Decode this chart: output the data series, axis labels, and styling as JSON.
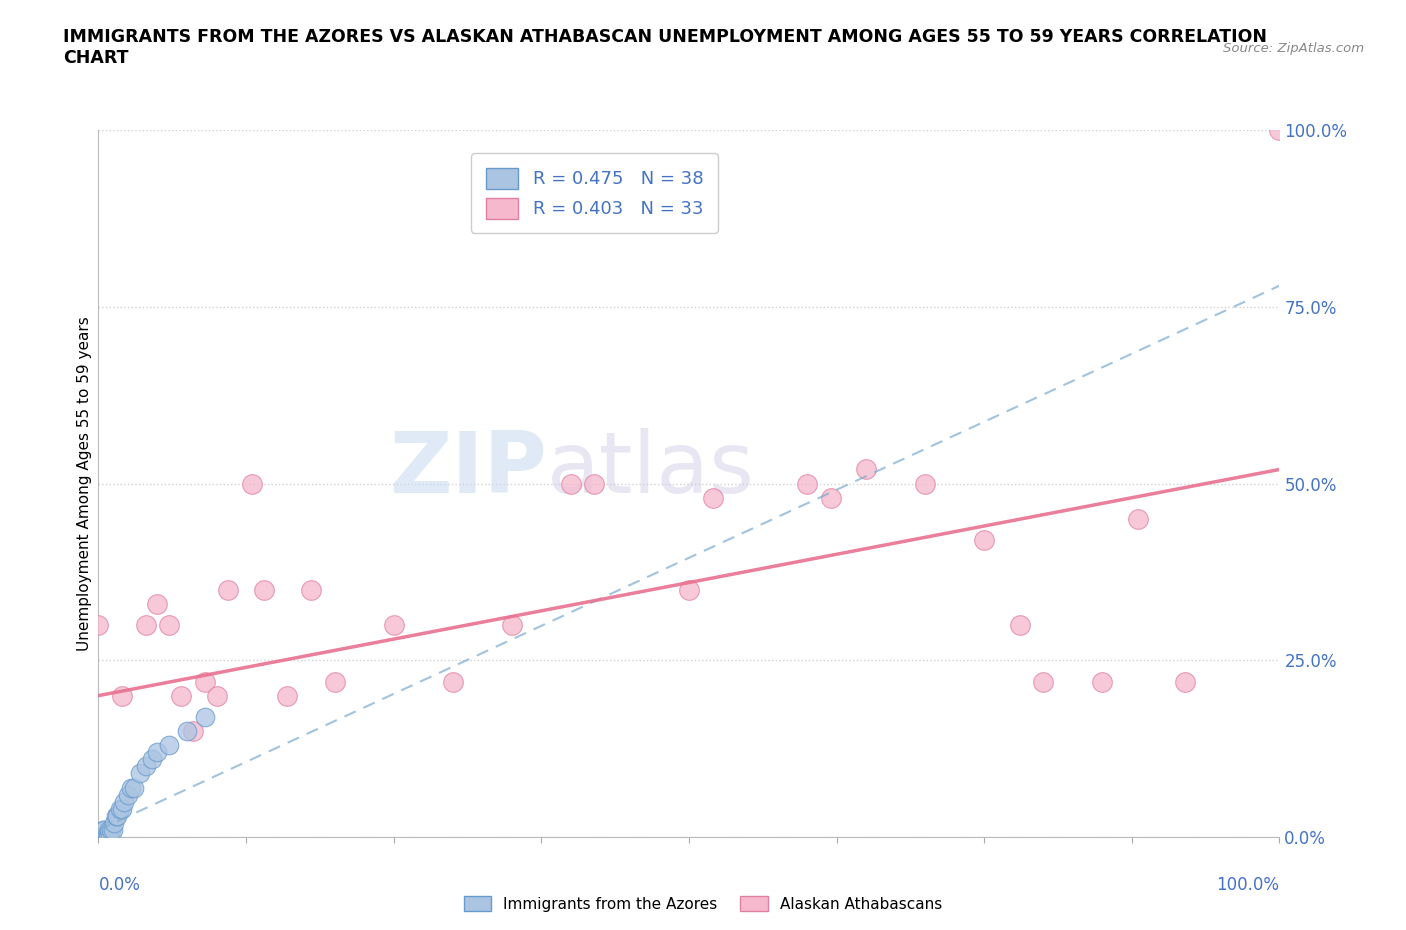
{
  "title": "IMMIGRANTS FROM THE AZORES VS ALASKAN ATHABASCAN UNEMPLOYMENT AMONG AGES 55 TO 59 YEARS CORRELATION\nCHART",
  "source_text": "Source: ZipAtlas.com",
  "ylabel": "Unemployment Among Ages 55 to 59 years",
  "xlim": [
    0.0,
    1.0
  ],
  "ylim": [
    0.0,
    1.0
  ],
  "ytick_labels": [
    "0.0%",
    "25.0%",
    "50.0%",
    "75.0%",
    "100.0%"
  ],
  "ytick_values": [
    0.0,
    0.25,
    0.5,
    0.75,
    1.0
  ],
  "blue_color": "#aac4e2",
  "pink_color": "#f5b8cc",
  "blue_edge_color": "#6699cc",
  "pink_edge_color": "#e080a0",
  "blue_line_color": "#7aaad0",
  "pink_line_color": "#e87090",
  "legend_blue_R": "R = 0.475",
  "legend_blue_N": "N = 38",
  "legend_pink_R": "R = 0.403",
  "legend_pink_N": "N = 33",
  "watermark_zip": "ZIP",
  "watermark_atlas": "atlas",
  "blue_scatter_x": [
    0.0,
    0.0,
    0.0,
    0.001,
    0.001,
    0.001,
    0.002,
    0.002,
    0.002,
    0.003,
    0.003,
    0.004,
    0.004,
    0.005,
    0.005,
    0.006,
    0.007,
    0.008,
    0.009,
    0.01,
    0.011,
    0.012,
    0.013,
    0.015,
    0.016,
    0.018,
    0.02,
    0.022,
    0.025,
    0.028,
    0.03,
    0.035,
    0.04,
    0.045,
    0.05,
    0.06,
    0.075,
    0.09
  ],
  "blue_scatter_y": [
    0.0,
    0.0,
    0.0,
    0.0,
    0.0,
    0.0,
    0.0,
    0.0,
    0.0,
    0.0,
    0.0,
    0.0,
    0.01,
    0.0,
    0.01,
    0.0,
    0.0,
    0.0,
    0.01,
    0.0,
    0.01,
    0.01,
    0.02,
    0.03,
    0.03,
    0.04,
    0.04,
    0.05,
    0.06,
    0.07,
    0.07,
    0.09,
    0.1,
    0.11,
    0.12,
    0.13,
    0.15,
    0.17
  ],
  "pink_scatter_x": [
    0.0,
    0.02,
    0.04,
    0.05,
    0.06,
    0.07,
    0.08,
    0.09,
    0.1,
    0.11,
    0.13,
    0.14,
    0.16,
    0.18,
    0.2,
    0.25,
    0.3,
    0.35,
    0.4,
    0.42,
    0.5,
    0.52,
    0.6,
    0.62,
    0.65,
    0.7,
    0.75,
    0.78,
    0.8,
    0.85,
    0.88,
    0.92,
    1.0
  ],
  "pink_scatter_y": [
    0.3,
    0.2,
    0.3,
    0.33,
    0.3,
    0.2,
    0.15,
    0.22,
    0.2,
    0.35,
    0.5,
    0.35,
    0.2,
    0.35,
    0.22,
    0.3,
    0.22,
    0.3,
    0.5,
    0.5,
    0.35,
    0.48,
    0.5,
    0.48,
    0.52,
    0.5,
    0.42,
    0.3,
    0.22,
    0.22,
    0.45,
    0.22,
    1.0
  ],
  "blue_line_x0": 0.0,
  "blue_line_y0": 0.01,
  "blue_line_x1": 1.0,
  "blue_line_y1": 0.78,
  "pink_line_x0": 0.0,
  "pink_line_y0": 0.2,
  "pink_line_x1": 1.0,
  "pink_line_y1": 0.52
}
